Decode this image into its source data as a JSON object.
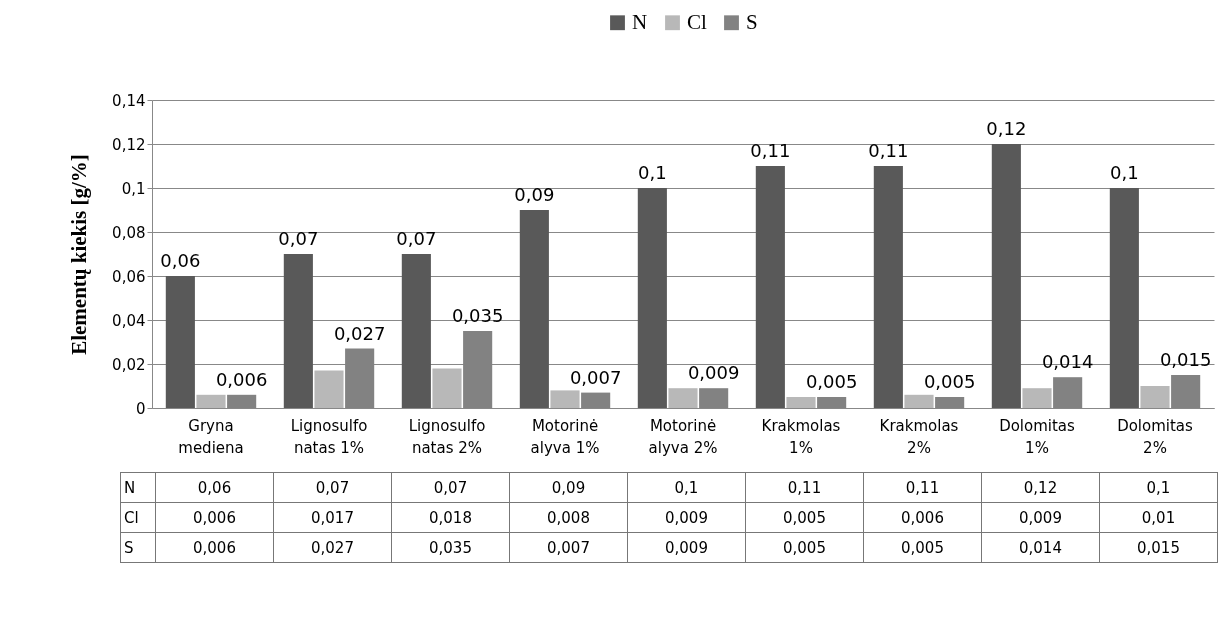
{
  "chart_data": {
    "type": "bar",
    "ylabel": "Elementų kiekis [g/%]",
    "categories": [
      "Gryna mediena",
      "Lignosulfonatas 1%",
      "Lignosulfonatas 2%",
      "Motorinė alyva 1%",
      "Motorinė alyva 2%",
      "Krakmolas 1%",
      "Krakmolas 2%",
      "Dolomitas 1%",
      "Dolomitas 2%"
    ],
    "series": [
      {
        "name": "N",
        "color": "#595959",
        "data_labels": true,
        "values": [
          0.06,
          0.07,
          0.07,
          0.09,
          0.1,
          0.11,
          0.11,
          0.12,
          0.1
        ],
        "value_labels": [
          "0,06",
          "0,07",
          "0,07",
          "0,09",
          "0,1",
          "0,11",
          "0,11",
          "0,12",
          "0,1"
        ]
      },
      {
        "name": "Cl",
        "color": "#b8b8b8",
        "values": [
          0.006,
          0.017,
          0.018,
          0.008,
          0.009,
          0.005,
          0.006,
          0.009,
          0.01
        ],
        "value_labels": [
          "0,006",
          "0,017",
          "0,018",
          "0,008",
          "0,009",
          "0,005",
          "0,006",
          "0,009",
          "0,01"
        ]
      },
      {
        "name": "S",
        "color": "#828282",
        "data_labels": true,
        "values": [
          0.006,
          0.027,
          0.035,
          0.007,
          0.009,
          0.005,
          0.005,
          0.014,
          0.015
        ],
        "value_labels": [
          "0,006",
          "0,027",
          "0,035",
          "0,007",
          "0,009",
          "0,005",
          "0,005",
          "0,014",
          "0,015"
        ]
      }
    ],
    "ylim": [
      0,
      0.14
    ],
    "yticks": [
      0,
      {
        "value": 0.02,
        "label": "0,02"
      },
      {
        "value": 0.04,
        "label": "0,04"
      },
      {
        "value": 0.06,
        "label": "0,06"
      },
      {
        "value": 0.08,
        "label": "0,08"
      },
      {
        "value": 0.1,
        "label": "0,1"
      },
      {
        "value": 0.12,
        "label": "0,12"
      },
      {
        "value": 0.14,
        "label": "0,14"
      }
    ],
    "grid": "y",
    "legend": "top",
    "data_labels": true
  }
}
